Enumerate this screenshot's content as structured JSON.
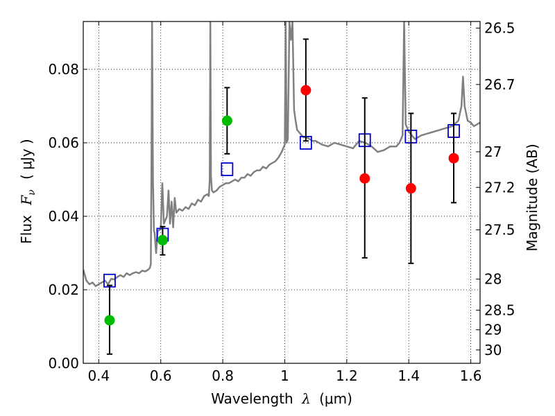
{
  "chart_data": {
    "type": "scatter",
    "xlim": [
      0.35,
      1.63
    ],
    "ylim": [
      0.0,
      0.093
    ],
    "grid": true,
    "xlabel": {
      "prefix": "Wavelength",
      "symbol": "λ",
      "unit": "(μm)"
    },
    "ylabel": {
      "prefix": "Flux",
      "symbol": "F",
      "subscript": "ν",
      "unit": "( μJy )"
    },
    "y2label": "Magnitude (AB)",
    "x_ticks": [
      {
        "value": 0.4,
        "label": "0.4"
      },
      {
        "value": 0.6,
        "label": "0.6"
      },
      {
        "value": 0.8,
        "label": "0.8"
      },
      {
        "value": 1.0,
        "label": "1"
      },
      {
        "value": 1.2,
        "label": "1.2"
      },
      {
        "value": 1.4,
        "label": "1.4"
      },
      {
        "value": 1.6,
        "label": "1.6"
      }
    ],
    "y_ticks": [
      {
        "value": 0.0,
        "label": "0.00"
      },
      {
        "value": 0.02,
        "label": "0.02"
      },
      {
        "value": 0.04,
        "label": "0.04"
      },
      {
        "value": 0.06,
        "label": "0.06"
      },
      {
        "value": 0.08,
        "label": "0.08"
      }
    ],
    "y2_ticks": [
      {
        "value": 26.5,
        "label": "26.5"
      },
      {
        "value": 26.7,
        "label": "26.7"
      },
      {
        "value": 27.0,
        "label": "27"
      },
      {
        "value": 27.2,
        "label": "27.2"
      },
      {
        "value": 27.5,
        "label": "27.5"
      },
      {
        "value": 28.0,
        "label": "28"
      },
      {
        "value": 28.5,
        "label": "28.5"
      },
      {
        "value": 29.0,
        "label": "29"
      },
      {
        "value": 30.0,
        "label": "30"
      }
    ],
    "series": [
      {
        "kind": "line",
        "color": "#808080",
        "points": [
          [
            0.35,
            0.0255
          ],
          [
            0.36,
            0.0225
          ],
          [
            0.37,
            0.0215
          ],
          [
            0.38,
            0.022
          ],
          [
            0.39,
            0.021
          ],
          [
            0.4,
            0.0215
          ],
          [
            0.41,
            0.022
          ],
          [
            0.42,
            0.0225
          ],
          [
            0.43,
            0.0215
          ],
          [
            0.44,
            0.023
          ],
          [
            0.45,
            0.0228
          ],
          [
            0.46,
            0.0235
          ],
          [
            0.47,
            0.024
          ],
          [
            0.48,
            0.0235
          ],
          [
            0.49,
            0.0245
          ],
          [
            0.5,
            0.024
          ],
          [
            0.51,
            0.0245
          ],
          [
            0.52,
            0.0248
          ],
          [
            0.53,
            0.0245
          ],
          [
            0.54,
            0.0252
          ],
          [
            0.55,
            0.025
          ],
          [
            0.56,
            0.0255
          ],
          [
            0.565,
            0.026
          ],
          [
            0.568,
            0.027
          ],
          [
            0.57,
            0.053
          ],
          [
            0.572,
            0.093
          ],
          [
            0.575,
            0.05
          ],
          [
            0.578,
            0.036
          ],
          [
            0.58,
            0.0355
          ],
          [
            0.585,
            0.03
          ],
          [
            0.59,
            0.036
          ],
          [
            0.6,
            0.0365
          ],
          [
            0.605,
            0.049
          ],
          [
            0.61,
            0.038
          ],
          [
            0.62,
            0.04
          ],
          [
            0.625,
            0.047
          ],
          [
            0.63,
            0.038
          ],
          [
            0.635,
            0.044
          ],
          [
            0.64,
            0.037
          ],
          [
            0.645,
            0.045
          ],
          [
            0.65,
            0.041
          ],
          [
            0.66,
            0.042
          ],
          [
            0.67,
            0.0415
          ],
          [
            0.68,
            0.0425
          ],
          [
            0.69,
            0.042
          ],
          [
            0.7,
            0.0435
          ],
          [
            0.71,
            0.043
          ],
          [
            0.72,
            0.0445
          ],
          [
            0.73,
            0.044
          ],
          [
            0.74,
            0.0455
          ],
          [
            0.75,
            0.046
          ],
          [
            0.755,
            0.0455
          ],
          [
            0.758,
            0.05
          ],
          [
            0.76,
            0.093
          ],
          [
            0.762,
            0.051
          ],
          [
            0.765,
            0.047
          ],
          [
            0.77,
            0.0465
          ],
          [
            0.78,
            0.047
          ],
          [
            0.79,
            0.048
          ],
          [
            0.8,
            0.0485
          ],
          [
            0.81,
            0.049
          ],
          [
            0.82,
            0.049
          ],
          [
            0.83,
            0.0495
          ],
          [
            0.84,
            0.05
          ],
          [
            0.85,
            0.0495
          ],
          [
            0.86,
            0.0505
          ],
          [
            0.87,
            0.0505
          ],
          [
            0.88,
            0.0515
          ],
          [
            0.89,
            0.051
          ],
          [
            0.9,
            0.052
          ],
          [
            0.91,
            0.0525
          ],
          [
            0.92,
            0.0525
          ],
          [
            0.93,
            0.0535
          ],
          [
            0.94,
            0.053
          ],
          [
            0.95,
            0.054
          ],
          [
            0.96,
            0.0545
          ],
          [
            0.97,
            0.055
          ],
          [
            0.98,
            0.056
          ],
          [
            0.99,
            0.0575
          ],
          [
            1.0,
            0.0595
          ],
          [
            1.003,
            0.093
          ],
          [
            1.006,
            0.06
          ],
          [
            1.01,
            0.061
          ],
          [
            1.015,
            0.093
          ],
          [
            1.02,
            0.088
          ],
          [
            1.025,
            0.093
          ],
          [
            1.03,
            0.069
          ],
          [
            1.035,
            0.066
          ],
          [
            1.04,
            0.0635
          ],
          [
            1.05,
            0.0625
          ],
          [
            1.06,
            0.0615
          ],
          [
            1.07,
            0.0615
          ],
          [
            1.08,
            0.061
          ],
          [
            1.09,
            0.0605
          ],
          [
            1.1,
            0.0605
          ],
          [
            1.12,
            0.0595
          ],
          [
            1.14,
            0.059
          ],
          [
            1.16,
            0.06
          ],
          [
            1.18,
            0.0595
          ],
          [
            1.2,
            0.059
          ],
          [
            1.22,
            0.0585
          ],
          [
            1.24,
            0.0605
          ],
          [
            1.26,
            0.06
          ],
          [
            1.28,
            0.059
          ],
          [
            1.3,
            0.0575
          ],
          [
            1.32,
            0.058
          ],
          [
            1.34,
            0.059
          ],
          [
            1.36,
            0.059
          ],
          [
            1.37,
            0.06
          ],
          [
            1.38,
            0.062
          ],
          [
            1.385,
            0.093
          ],
          [
            1.39,
            0.065
          ],
          [
            1.4,
            0.063
          ],
          [
            1.42,
            0.061
          ],
          [
            1.44,
            0.062
          ],
          [
            1.46,
            0.0625
          ],
          [
            1.48,
            0.063
          ],
          [
            1.5,
            0.0635
          ],
          [
            1.52,
            0.064
          ],
          [
            1.54,
            0.0645
          ],
          [
            1.56,
            0.066
          ],
          [
            1.57,
            0.07
          ],
          [
            1.575,
            0.078
          ],
          [
            1.58,
            0.07
          ],
          [
            1.59,
            0.066
          ],
          [
            1.6,
            0.0655
          ],
          [
            1.61,
            0.0645
          ],
          [
            1.62,
            0.065
          ],
          [
            1.63,
            0.0655
          ]
        ]
      },
      {
        "kind": "points",
        "marker": "square",
        "color": "#0000cc",
        "points": [
          {
            "x": 0.435,
            "y": 0.0225
          },
          {
            "x": 0.606,
            "y": 0.035
          },
          {
            "x": 0.814,
            "y": 0.0528
          },
          {
            "x": 1.068,
            "y": 0.06
          },
          {
            "x": 1.258,
            "y": 0.0607
          },
          {
            "x": 1.407,
            "y": 0.0617
          },
          {
            "x": 1.545,
            "y": 0.0632
          }
        ]
      },
      {
        "kind": "points",
        "marker": "circle",
        "color": "#00bb00",
        "points": [
          {
            "x": 0.435,
            "y": 0.0117,
            "err_lo": 0.0025,
            "err_hi": 0.0212
          },
          {
            "x": 0.606,
            "y": 0.0335,
            "err_lo": 0.0295,
            "err_hi": 0.0372
          },
          {
            "x": 0.814,
            "y": 0.066,
            "err_lo": 0.057,
            "err_hi": 0.075
          }
        ]
      },
      {
        "kind": "points",
        "marker": "circle",
        "color": "#ff0000",
        "points": [
          {
            "x": 1.068,
            "y": 0.0743,
            "err_lo": 0.0605,
            "err_hi": 0.0882
          },
          {
            "x": 1.258,
            "y": 0.0503,
            "err_lo": 0.0287,
            "err_hi": 0.0722
          },
          {
            "x": 1.407,
            "y": 0.0476,
            "err_lo": 0.0272,
            "err_hi": 0.068
          },
          {
            "x": 1.545,
            "y": 0.0558,
            "err_lo": 0.0437,
            "err_hi": 0.068
          }
        ]
      }
    ]
  }
}
